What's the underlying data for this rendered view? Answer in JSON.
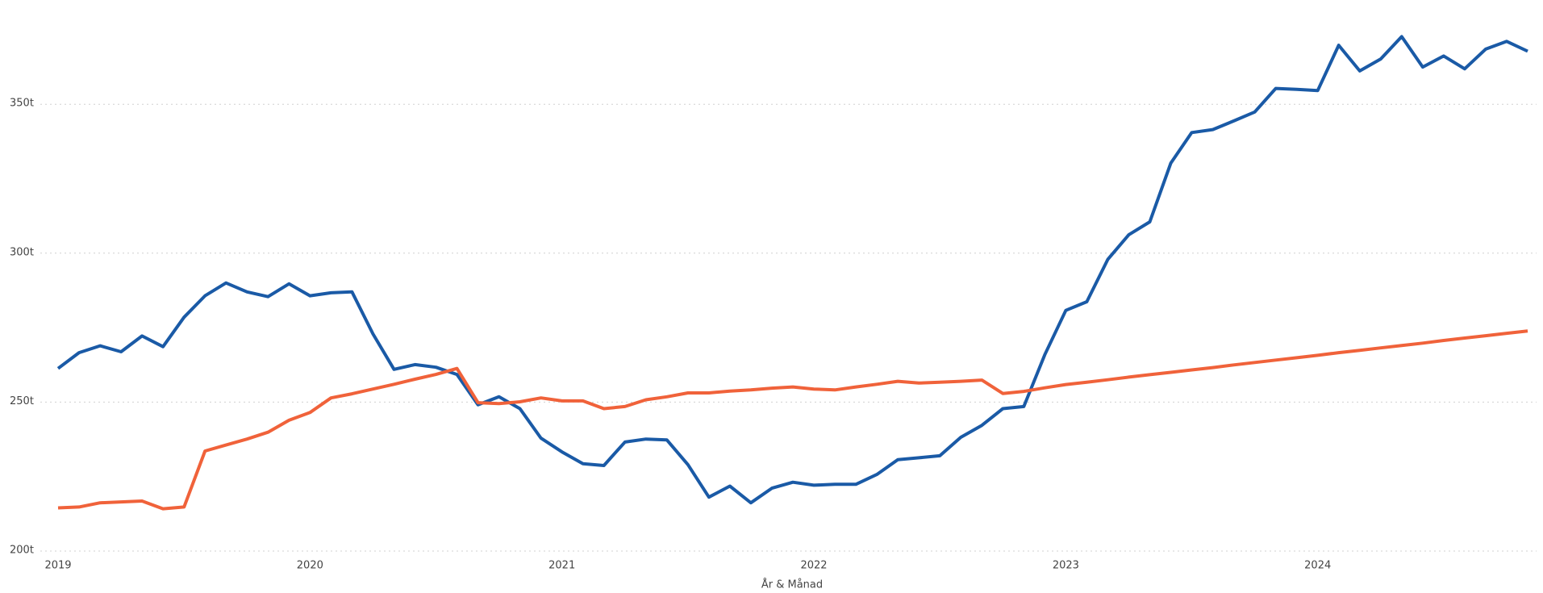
{
  "chart_data": {
    "type": "line",
    "x_label": "År & Månad",
    "categories": [
      "2019",
      null,
      null,
      null,
      null,
      null,
      null,
      null,
      null,
      null,
      null,
      null,
      "2020",
      null,
      null,
      null,
      null,
      null,
      null,
      null,
      null,
      null,
      null,
      null,
      "2021",
      null,
      null,
      null,
      null,
      null,
      null,
      null,
      null,
      null,
      null,
      null,
      "2022",
      null,
      null,
      null,
      null,
      null,
      null,
      null,
      null,
      null,
      null,
      null,
      "2023",
      null,
      null,
      null,
      null,
      null,
      null,
      null,
      null,
      null,
      null,
      null,
      "2024",
      null,
      null,
      null,
      null,
      null,
      null,
      null,
      null,
      null,
      null
    ],
    "series": [
      {
        "color": "#1a5aa6",
        "values": [
          261300,
          266600,
          268900,
          266900,
          272200,
          268600,
          278500,
          285700,
          290000,
          287000,
          285400,
          289700,
          285700,
          286700,
          287000,
          272900,
          261000,
          262600,
          261700,
          259300,
          249100,
          251800,
          247800,
          237900,
          233300,
          229300,
          228700,
          236600,
          237600,
          237300,
          229000,
          218100,
          221800,
          216200,
          221100,
          223100,
          222100,
          222400,
          222400,
          225700,
          230700,
          231300,
          232000,
          238200,
          242200,
          247800,
          248500,
          265900,
          280800,
          283700,
          297900,
          306200,
          310500,
          330200,
          340500,
          341500,
          344400,
          347400,
          355300,
          355000,
          354600,
          369800,
          361200,
          365200,
          372700,
          362500,
          366200,
          361900,
          368500,
          371100,
          367800
        ]
      },
      {
        "color": "#f0623a",
        "values": [
          214500,
          214800,
          216200,
          216500,
          216800,
          214200,
          214800,
          233600,
          235600,
          237600,
          239900,
          243900,
          246500,
          251400,
          252800,
          254400,
          256000,
          257700,
          259300,
          261300,
          249800,
          249500,
          250100,
          251400,
          250400,
          250400,
          247800,
          248500,
          250800,
          251800,
          253100,
          253100,
          253700,
          254100,
          254700,
          255100,
          254400,
          254100,
          255100,
          256000,
          257000,
          256400,
          256700,
          257000,
          257400,
          252900,
          253600,
          254800,
          255900,
          256700,
          257500,
          258400,
          259200,
          260000,
          260800,
          261600,
          262500,
          263300,
          264100,
          264900,
          265700,
          266600,
          267400,
          268200,
          269000,
          269800,
          270700,
          271500,
          272300,
          273100,
          273900
        ]
      }
    ],
    "ylim": [
      200000,
      385000
    ],
    "yticks": [
      {
        "value": 200000,
        "label": "200t"
      },
      {
        "value": 250000,
        "label": "250t"
      },
      {
        "value": 300000,
        "label": "300t"
      },
      {
        "value": 350000,
        "label": "350t"
      }
    ],
    "grid": true
  }
}
